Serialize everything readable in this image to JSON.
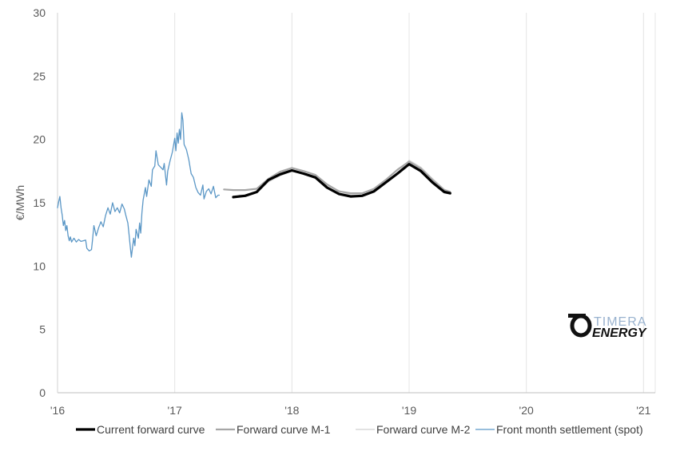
{
  "chart_data": {
    "type": "line",
    "title": "",
    "xlabel": "",
    "ylabel": "€/MWh",
    "ylim": [
      0,
      30
    ],
    "xlim": [
      2016,
      2021.1
    ],
    "yticks": [
      0,
      5,
      10,
      15,
      20,
      25,
      30
    ],
    "xticks": [
      {
        "value": 2016,
        "label": "'16"
      },
      {
        "value": 2017,
        "label": "'17"
      },
      {
        "value": 2018,
        "label": "'18"
      },
      {
        "value": 2019,
        "label": "'19"
      },
      {
        "value": 2020,
        "label": "'20"
      },
      {
        "value": 2021,
        "label": "'21"
      }
    ],
    "grid": "vertical",
    "legend_position": "bottom",
    "series": [
      {
        "name": "Current forward curve",
        "color": "#000000",
        "points": [
          [
            2017.5,
            15.45
          ],
          [
            2017.6,
            15.55
          ],
          [
            2017.7,
            15.85
          ],
          [
            2017.8,
            16.8
          ],
          [
            2017.9,
            17.25
          ],
          [
            2018.0,
            17.55
          ],
          [
            2018.1,
            17.3
          ],
          [
            2018.2,
            17.0
          ],
          [
            2018.3,
            16.2
          ],
          [
            2018.4,
            15.7
          ],
          [
            2018.5,
            15.5
          ],
          [
            2018.6,
            15.55
          ],
          [
            2018.7,
            15.9
          ],
          [
            2018.8,
            16.6
          ],
          [
            2018.9,
            17.3
          ],
          [
            2019.0,
            18.05
          ],
          [
            2019.1,
            17.5
          ],
          [
            2019.2,
            16.6
          ],
          [
            2019.3,
            15.85
          ],
          [
            2019.35,
            15.75
          ]
        ]
      },
      {
        "name": "Forward curve M-1",
        "color": "#a6a6a6",
        "points": [
          [
            2017.42,
            16.05
          ],
          [
            2017.5,
            16.0
          ],
          [
            2017.6,
            16.0
          ],
          [
            2017.7,
            16.1
          ],
          [
            2017.8,
            16.9
          ],
          [
            2017.9,
            17.45
          ],
          [
            2018.0,
            17.75
          ],
          [
            2018.1,
            17.5
          ],
          [
            2018.2,
            17.2
          ],
          [
            2018.3,
            16.45
          ],
          [
            2018.4,
            15.9
          ],
          [
            2018.5,
            15.75
          ],
          [
            2018.6,
            15.75
          ],
          [
            2018.7,
            16.1
          ],
          [
            2018.8,
            16.8
          ],
          [
            2018.9,
            17.6
          ],
          [
            2019.0,
            18.25
          ],
          [
            2019.1,
            17.7
          ],
          [
            2019.2,
            16.8
          ],
          [
            2019.3,
            16.0
          ],
          [
            2019.35,
            15.85
          ]
        ]
      },
      {
        "name": "Forward curve M-2",
        "color": "#d9d9d9",
        "points": [
          [
            2017.55,
            15.6
          ],
          [
            2017.6,
            15.6
          ],
          [
            2017.7,
            15.85
          ],
          [
            2017.8,
            16.65
          ],
          [
            2017.9,
            17.15
          ],
          [
            2018.0,
            17.5
          ],
          [
            2018.1,
            17.3
          ],
          [
            2018.2,
            17.05
          ],
          [
            2018.3,
            16.4
          ],
          [
            2018.4,
            15.95
          ],
          [
            2018.5,
            15.6
          ],
          [
            2018.6,
            15.55
          ],
          [
            2018.7,
            15.9
          ],
          [
            2018.8,
            16.55
          ],
          [
            2018.9,
            17.3
          ],
          [
            2019.0,
            18.35
          ],
          [
            2019.1,
            17.8
          ],
          [
            2019.2,
            16.9
          ],
          [
            2019.3,
            16.05
          ],
          [
            2019.35,
            15.9
          ]
        ]
      },
      {
        "name": "Front month settlement (spot)",
        "color": "#5b97c6",
        "points": [
          [
            2016.0,
            14.6
          ],
          [
            2016.01,
            15.1
          ],
          [
            2016.02,
            15.5
          ],
          [
            2016.03,
            14.6
          ],
          [
            2016.04,
            14.0
          ],
          [
            2016.05,
            13.2
          ],
          [
            2016.06,
            13.6
          ],
          [
            2016.07,
            12.8
          ],
          [
            2016.08,
            13.2
          ],
          [
            2016.09,
            12.4
          ],
          [
            2016.1,
            12.0
          ],
          [
            2016.11,
            12.3
          ],
          [
            2016.12,
            11.9
          ],
          [
            2016.14,
            12.2
          ],
          [
            2016.16,
            11.9
          ],
          [
            2016.18,
            12.1
          ],
          [
            2016.2,
            11.95
          ],
          [
            2016.22,
            12.0
          ],
          [
            2016.24,
            12.05
          ],
          [
            2016.25,
            11.4
          ],
          [
            2016.27,
            11.2
          ],
          [
            2016.29,
            11.3
          ],
          [
            2016.3,
            12.2
          ],
          [
            2016.31,
            13.2
          ],
          [
            2016.33,
            12.4
          ],
          [
            2016.35,
            13.0
          ],
          [
            2016.37,
            13.5
          ],
          [
            2016.39,
            13.1
          ],
          [
            2016.41,
            14.0
          ],
          [
            2016.43,
            14.6
          ],
          [
            2016.45,
            14.1
          ],
          [
            2016.47,
            15.0
          ],
          [
            2016.49,
            14.3
          ],
          [
            2016.51,
            14.6
          ],
          [
            2016.53,
            14.2
          ],
          [
            2016.55,
            14.9
          ],
          [
            2016.57,
            14.5
          ],
          [
            2016.58,
            14.1
          ],
          [
            2016.6,
            13.4
          ],
          [
            2016.61,
            12.5
          ],
          [
            2016.62,
            11.6
          ],
          [
            2016.63,
            10.7
          ],
          [
            2016.64,
            11.5
          ],
          [
            2016.65,
            12.2
          ],
          [
            2016.66,
            11.6
          ],
          [
            2016.67,
            12.9
          ],
          [
            2016.69,
            12.2
          ],
          [
            2016.7,
            13.4
          ],
          [
            2016.71,
            12.6
          ],
          [
            2016.72,
            14.2
          ],
          [
            2016.73,
            15.2
          ],
          [
            2016.75,
            16.2
          ],
          [
            2016.76,
            15.5
          ],
          [
            2016.78,
            16.8
          ],
          [
            2016.8,
            16.3
          ],
          [
            2016.81,
            17.6
          ],
          [
            2016.83,
            17.9
          ],
          [
            2016.84,
            19.1
          ],
          [
            2016.86,
            18.0
          ],
          [
            2016.88,
            17.8
          ],
          [
            2016.9,
            17.6
          ],
          [
            2016.91,
            18.1
          ],
          [
            2016.93,
            16.4
          ],
          [
            2016.94,
            17.5
          ],
          [
            2016.96,
            18.3
          ],
          [
            2016.98,
            19.0
          ],
          [
            2017.0,
            20.1
          ],
          [
            2017.01,
            19.1
          ],
          [
            2017.02,
            20.5
          ],
          [
            2017.03,
            19.7
          ],
          [
            2017.04,
            20.8
          ],
          [
            2017.05,
            20.0
          ],
          [
            2017.06,
            22.1
          ],
          [
            2017.07,
            21.5
          ],
          [
            2017.08,
            19.6
          ],
          [
            2017.1,
            19.2
          ],
          [
            2017.12,
            18.4
          ],
          [
            2017.14,
            17.3
          ],
          [
            2017.16,
            17.0
          ],
          [
            2017.18,
            16.2
          ],
          [
            2017.2,
            15.8
          ],
          [
            2017.22,
            15.6
          ],
          [
            2017.24,
            16.4
          ],
          [
            2017.25,
            15.3
          ],
          [
            2017.27,
            15.9
          ],
          [
            2017.29,
            16.1
          ],
          [
            2017.31,
            15.7
          ],
          [
            2017.33,
            16.3
          ],
          [
            2017.35,
            15.4
          ],
          [
            2017.37,
            15.6
          ],
          [
            2017.38,
            15.6
          ]
        ]
      }
    ]
  },
  "logo": {
    "top": "TIMERA",
    "bottom": "ENERGY"
  }
}
